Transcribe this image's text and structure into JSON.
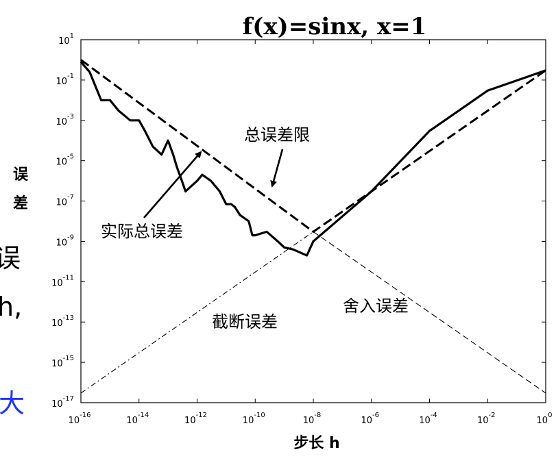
{
  "slide_fragments": {
    "left_text": [
      "误",
      "h,"
    ],
    "left_text_blue": "大"
  },
  "chart_data": {
    "type": "line",
    "title": "f(x)=sinx, x=1",
    "xlabel": "步长 h",
    "ylabel": "误差",
    "x_scale": "log",
    "y_scale": "log",
    "xlim": [
      1e-16,
      1
    ],
    "ylim": [
      1e-17,
      10
    ],
    "x_ticks": [
      {
        "base": "10",
        "exp": "-16",
        "value": 1e-16
      },
      {
        "base": "10",
        "exp": "-14",
        "value": 1e-14
      },
      {
        "base": "10",
        "exp": "-12",
        "value": 1e-12
      },
      {
        "base": "10",
        "exp": "-10",
        "value": 1e-10
      },
      {
        "base": "10",
        "exp": "-8",
        "value": 1e-08
      },
      {
        "base": "10",
        "exp": "-6",
        "value": 1e-06
      },
      {
        "base": "10",
        "exp": "-4",
        "value": 0.0001
      },
      {
        "base": "10",
        "exp": "-2",
        "value": 0.01
      },
      {
        "base": "10",
        "exp": "0",
        "value": 1
      }
    ],
    "y_ticks": [
      {
        "base": "10",
        "exp": "1",
        "value": 10
      },
      {
        "base": "10",
        "exp": "-1",
        "value": 0.1
      },
      {
        "base": "10",
        "exp": "-3",
        "value": 0.001
      },
      {
        "base": "10",
        "exp": "-5",
        "value": 1e-05
      },
      {
        "base": "10",
        "exp": "-7",
        "value": 1e-07
      },
      {
        "base": "10",
        "exp": "-9",
        "value": 1e-09
      },
      {
        "base": "10",
        "exp": "-11",
        "value": 1e-11
      },
      {
        "base": "10",
        "exp": "-13",
        "value": 1e-13
      },
      {
        "base": "10",
        "exp": "-15",
        "value": 1e-15
      },
      {
        "base": "10",
        "exp": "-17",
        "value": 1e-17
      }
    ],
    "grid": false,
    "legend": "none",
    "series": [
      {
        "key": "total_error_bound",
        "style": "dashed-thick",
        "points": [
          [
            1e-16,
            1.0
          ],
          [
            1e-08,
            3e-09
          ],
          [
            1,
            0.3
          ]
        ]
      },
      {
        "key": "actual_total_error",
        "style": "solid-thick",
        "points": [
          [
            1e-16,
            0.8
          ],
          [
            2e-16,
            0.25
          ],
          [
            3e-16,
            0.06
          ],
          [
            5e-16,
            0.01
          ],
          [
            1e-15,
            0.01
          ],
          [
            2e-15,
            0.003
          ],
          [
            5e-15,
            0.001
          ],
          [
            1e-14,
            0.001
          ],
          [
            1.6e-14,
            0.0003
          ],
          [
            3e-14,
            5e-05
          ],
          [
            6e-14,
            2e-05
          ],
          [
            1e-13,
            0.0001
          ],
          [
            1.5e-13,
            2e-05
          ],
          [
            2e-13,
            5e-06
          ],
          [
            3e-13,
            1e-06
          ],
          [
            4e-13,
            3e-07
          ],
          [
            1e-12,
            1e-06
          ],
          [
            1.5e-12,
            2e-06
          ],
          [
            3e-12,
            1e-06
          ],
          [
            6e-12,
            3e-07
          ],
          [
            1e-11,
            7e-08
          ],
          [
            1.5e-11,
            7e-08
          ],
          [
            2e-11,
            5e-08
          ],
          [
            3e-11,
            2e-08
          ],
          [
            6e-11,
            1e-08
          ],
          [
            8e-11,
            2e-09
          ],
          [
            1e-10,
            2e-09
          ],
          [
            2.5e-10,
            3e-09
          ],
          [
            6e-10,
            1e-09
          ],
          [
            1e-09,
            5e-10
          ],
          [
            2e-09,
            4e-10
          ],
          [
            6e-09,
            2e-10
          ],
          [
            1e-08,
            1e-09
          ],
          [
            1e-06,
            3e-07
          ],
          [
            0.0001,
            0.0003
          ],
          [
            0.01,
            0.03
          ],
          [
            1,
            0.3
          ]
        ]
      },
      {
        "key": "truncation_error",
        "style": "dash-dot-thin",
        "points": [
          [
            1e-16,
            3e-17
          ],
          [
            1e-08,
            3e-09
          ]
        ]
      },
      {
        "key": "rounding_error",
        "style": "dashed-thin",
        "points": [
          [
            1e-08,
            3e-09
          ],
          [
            1,
            3e-17
          ]
        ]
      }
    ],
    "annotations": [
      {
        "key": "bound_label",
        "text": "总误差限",
        "arrow": true
      },
      {
        "key": "actual_label",
        "text": "实际总误差",
        "arrow": true
      },
      {
        "key": "truncation_label",
        "text": "截断误差",
        "arrow": false
      },
      {
        "key": "rounding_label",
        "text": "舍入误差",
        "arrow": false
      }
    ]
  }
}
